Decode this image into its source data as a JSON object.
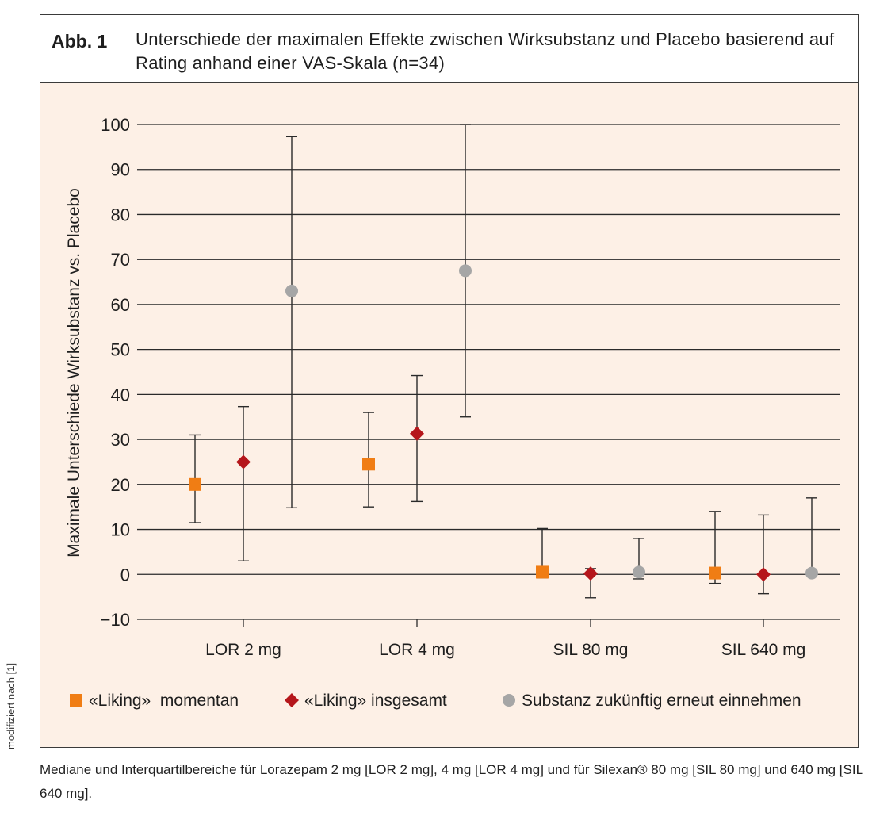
{
  "figure": {
    "label": "Abb. 1",
    "title": "Unterschiede der maximalen Effekte zwischen Wirksubstanz und Placebo basierend auf Rating anhand einer VAS-Skala (n=34)",
    "side_note": "modifiziert nach [1]",
    "caption": "Mediane und Interquartilbereiche für Lorazepam 2 mg [LOR 2 mg], 4 mg [LOR 4 mg] und für Silexan® 80 mg [SIL 80 mg] und 640 mg [SIL 640 mg]."
  },
  "chart_data": {
    "type": "scatter",
    "subtype": "median-with-interquartile-range",
    "ylabel": "Maximale Unterschiede Wirksubstanz vs. Placebo",
    "xlabel": "",
    "ylim": [
      -10,
      100
    ],
    "yticks": [
      -10,
      0,
      10,
      20,
      30,
      40,
      50,
      60,
      70,
      80,
      90,
      100
    ],
    "grid": true,
    "legend_position": "bottom",
    "categories": [
      "LOR 2 mg",
      "LOR 4 mg",
      "SIL 80 mg",
      "SIL 640 mg"
    ],
    "series": [
      {
        "name": "«Liking»  momentan",
        "marker": "square",
        "color": "#f07d14",
        "median": [
          20,
          24.5,
          0.5,
          0.3
        ],
        "lower": [
          11.5,
          15,
          -0.8,
          -2
        ],
        "upper": [
          31,
          36,
          10.2,
          14
        ]
      },
      {
        "name": "«Liking» insgesamt",
        "marker": "diamond",
        "color": "#b5161b",
        "median": [
          25,
          31.3,
          0.2,
          0
        ],
        "lower": [
          3,
          16.2,
          -5.2,
          -4.3
        ],
        "upper": [
          37.3,
          44.2,
          1.3,
          13.2
        ]
      },
      {
        "name": "Substanz zukünftig erneut einnehmen",
        "marker": "circle",
        "color": "#a6a6a6",
        "median": [
          63,
          67.5,
          0.5,
          0.3
        ],
        "lower": [
          14.8,
          35,
          -1,
          null
        ],
        "upper": [
          97.3,
          100,
          8,
          17
        ]
      }
    ]
  },
  "colors": {
    "plot_background": "#fdf0e6",
    "border": "#3a3a3a",
    "gridline": "#2a2a2a"
  }
}
